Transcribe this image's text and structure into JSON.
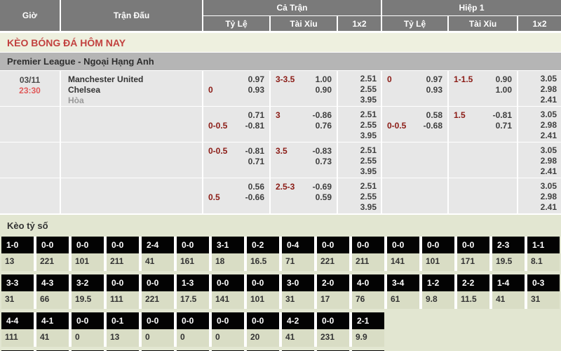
{
  "header": {
    "col_gio": "Giờ",
    "col_tran_dau": "Trận Đấu",
    "group_full": "Cả Trận",
    "group_h1": "Hiệp 1",
    "sub_ty_le": "Tỷ Lệ",
    "sub_tai_xiu": "Tài Xỉu",
    "sub_1x2": "1x2"
  },
  "title_bar": "KÈO BÓNG ĐÁ HÔM NAY",
  "league_bar": "Premier League - Ngoại Hạng Anh",
  "odds_rows": [
    {
      "date": "03/11",
      "time": "23:30",
      "home": "Manchester United",
      "away": "Chelsea",
      "draw": "Hòa",
      "ft_hdp": [
        [
          "",
          "0.97"
        ],
        [
          "0",
          "0.93"
        ]
      ],
      "ft_ou": [
        [
          "3-3.5",
          "1.00"
        ],
        [
          "",
          "0.90"
        ]
      ],
      "ft_1x2": [
        "2.51",
        "2.55",
        "3.95"
      ],
      "h1_hdp": [
        [
          "0",
          "0.97"
        ],
        [
          "",
          "0.93"
        ]
      ],
      "h1_ou": [
        [
          "1-1.5",
          "0.90"
        ],
        [
          "",
          "1.00"
        ]
      ],
      "h1_1x2": [
        "3.05",
        "2.98",
        "2.41"
      ]
    },
    {
      "date": "",
      "time": "",
      "home": "",
      "away": "",
      "draw": "",
      "ft_hdp": [
        [
          "",
          "0.71"
        ],
        [
          "0-0.5",
          "-0.81"
        ]
      ],
      "ft_ou": [
        [
          "3",
          "-0.86"
        ],
        [
          "",
          "0.76"
        ]
      ],
      "ft_1x2": [
        "2.51",
        "2.55",
        "3.95"
      ],
      "h1_hdp": [
        [
          "",
          "0.58"
        ],
        [
          "0-0.5",
          "-0.68"
        ]
      ],
      "h1_ou": [
        [
          "1.5",
          "-0.81"
        ],
        [
          "",
          "0.71"
        ]
      ],
      "h1_1x2": [
        "3.05",
        "2.98",
        "2.41"
      ]
    },
    {
      "date": "",
      "time": "",
      "home": "",
      "away": "",
      "draw": "",
      "ft_hdp": [
        [
          "0-0.5",
          "-0.81"
        ],
        [
          "",
          "0.71"
        ]
      ],
      "ft_ou": [
        [
          "3.5",
          "-0.83"
        ],
        [
          "",
          "0.73"
        ]
      ],
      "ft_1x2": [
        "2.51",
        "2.55",
        "3.95"
      ],
      "h1_hdp": [
        [
          "",
          ""
        ],
        [
          "",
          ""
        ]
      ],
      "h1_ou": [
        [
          "",
          ""
        ],
        [
          "",
          ""
        ]
      ],
      "h1_1x2": [
        "3.05",
        "2.98",
        "2.41"
      ]
    },
    {
      "date": "",
      "time": "",
      "home": "",
      "away": "",
      "draw": "",
      "ft_hdp": [
        [
          "",
          "0.56"
        ],
        [
          "0.5",
          "-0.66"
        ]
      ],
      "ft_ou": [
        [
          "2.5-3",
          "-0.69"
        ],
        [
          "",
          "0.59"
        ]
      ],
      "ft_1x2": [
        "2.51",
        "2.55",
        "3.95"
      ],
      "h1_hdp": [
        [
          "",
          ""
        ],
        [
          "",
          ""
        ]
      ],
      "h1_ou": [
        [
          "",
          ""
        ],
        [
          "",
          ""
        ]
      ],
      "h1_1x2": [
        "3.05",
        "2.98",
        "2.41"
      ]
    }
  ],
  "score_section": {
    "title": "Kèo tỷ số",
    "rows": [
      [
        [
          "1-0",
          "13"
        ],
        [
          "0-0",
          "221"
        ],
        [
          "0-0",
          "101"
        ],
        [
          "0-0",
          "211"
        ],
        [
          "2-4",
          "41"
        ],
        [
          "0-0",
          "161"
        ],
        [
          "3-1",
          "18"
        ],
        [
          "0-2",
          "16.5"
        ],
        [
          "0-4",
          "71"
        ],
        [
          "0-0",
          "221"
        ],
        [
          "0-0",
          "211"
        ],
        [
          "0-0",
          "141"
        ],
        [
          "0-0",
          "101"
        ],
        [
          "0-0",
          "171"
        ],
        [
          "2-3",
          "19.5"
        ],
        [
          "1-1",
          "8.1"
        ]
      ],
      [
        [
          "3-3",
          "31"
        ],
        [
          "4-3",
          "66"
        ],
        [
          "3-2",
          "19.5"
        ],
        [
          "0-0",
          "111"
        ],
        [
          "0-0",
          "221"
        ],
        [
          "1-3",
          "17.5"
        ],
        [
          "0-0",
          "141"
        ],
        [
          "0-0",
          "101"
        ],
        [
          "3-0",
          "31"
        ],
        [
          "2-0",
          "17"
        ],
        [
          "4-0",
          "76"
        ],
        [
          "3-4",
          "61"
        ],
        [
          "1-2",
          "9.8"
        ],
        [
          "2-2",
          "11.5"
        ],
        [
          "1-4",
          "41"
        ],
        [
          "0-3",
          "31"
        ]
      ],
      [
        [
          "4-4",
          "111"
        ],
        [
          "4-1",
          "41"
        ],
        [
          "0-0",
          "0"
        ],
        [
          "0-1",
          "13"
        ],
        [
          "0-0",
          "0"
        ],
        [
          "0-0",
          "0"
        ],
        [
          "0-0",
          "0"
        ],
        [
          "0-0",
          "20"
        ],
        [
          "4-2",
          "41"
        ],
        [
          "0-0",
          "231"
        ],
        [
          "2-1",
          "9.9"
        ]
      ]
    ],
    "cutoff_cells": 11
  },
  "colors": {
    "header_bg": "#7a7a7a",
    "title_text": "#c2413f",
    "title_bg": "#eef0df",
    "league_bg": "#b5b5b5",
    "row_bg": "#e7e7e7",
    "handicap_text": "#8b1b15",
    "time_text": "#e05a5a",
    "section_bg": "#e2e6d1",
    "value_cell_bg": "#d9ddc5",
    "score_cell_bg": "#030303"
  }
}
